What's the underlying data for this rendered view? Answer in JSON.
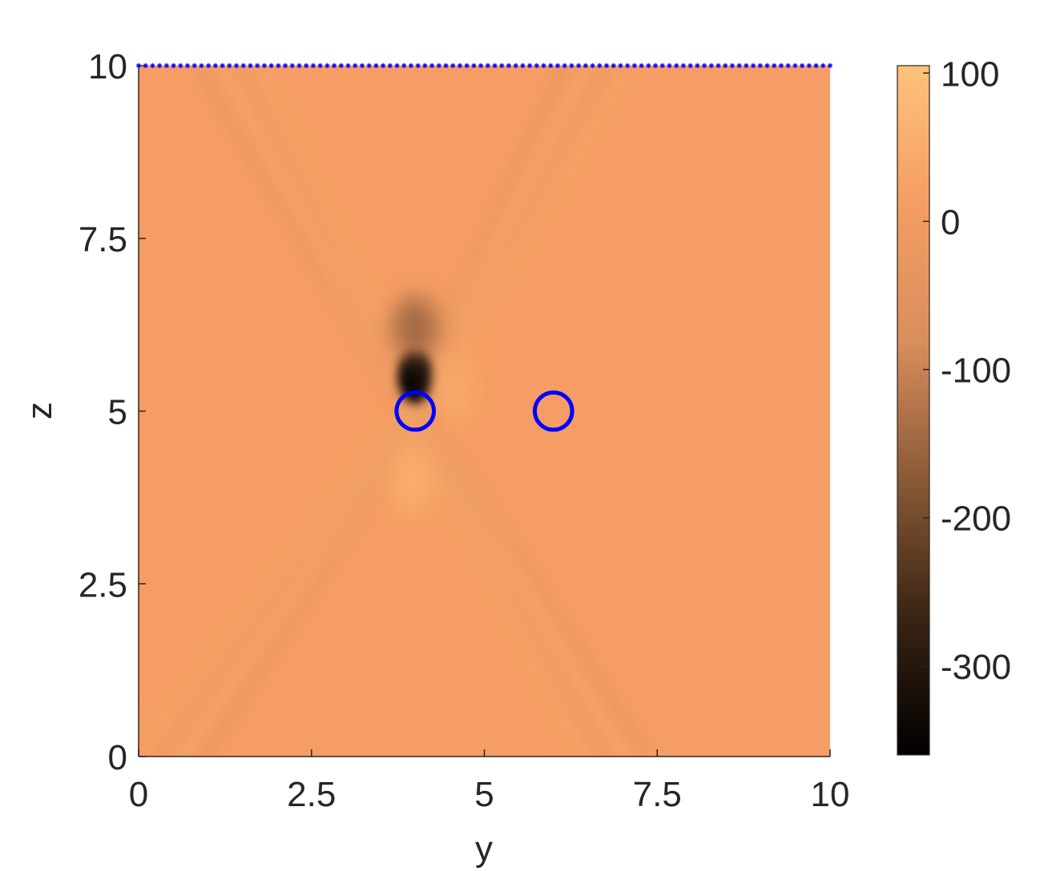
{
  "chart_data": {
    "type": "heatmap",
    "title": "",
    "xlabel": "y",
    "ylabel": "z",
    "xlim": [
      0,
      10
    ],
    "ylim": [
      0,
      10
    ],
    "x_ticks": [
      0,
      2.5,
      5,
      7.5,
      10
    ],
    "y_ticks": [
      0,
      2.5,
      5,
      7.5,
      10
    ],
    "x_tick_labels": [
      "0",
      "2.5",
      "5",
      "7.5",
      "10"
    ],
    "y_tick_labels": [
      "0",
      "2.5",
      "5",
      "7.5",
      "10"
    ],
    "colorbar": {
      "range": [
        -360,
        105
      ],
      "ticks": [
        100,
        0,
        -100,
        -200,
        -300
      ],
      "tick_labels": [
        "100",
        "0",
        "-100",
        "-200",
        "-300"
      ],
      "colormap": "copper",
      "colors": [
        "#000000",
        "#3a2414",
        "#8a5a36",
        "#d98e5c",
        "#f59d64",
        "#ffc27a"
      ]
    },
    "field_background_value": 12,
    "features": [
      {
        "kind": "dark-minimum",
        "y": 4.0,
        "z": 5.5,
        "value": -360
      },
      {
        "kind": "dark-lobe",
        "y": 4.0,
        "z": 6.2,
        "value": -150
      },
      {
        "kind": "bright-maximum",
        "y": 3.95,
        "z": 4.0,
        "value": 60
      },
      {
        "kind": "bright-maximum",
        "y": 4.6,
        "z": 5.3,
        "value": 45
      }
    ],
    "wave_bands": [
      {
        "from": [
          4.0,
          5.0
        ],
        "to": [
          1.2,
          10.0
        ]
      },
      {
        "from": [
          4.0,
          5.0
        ],
        "to": [
          6.5,
          10.0
        ]
      },
      {
        "from": [
          4.0,
          5.0
        ],
        "to": [
          0.6,
          0.0
        ]
      },
      {
        "from": [
          4.0,
          5.0
        ],
        "to": [
          7.0,
          0.0
        ]
      }
    ],
    "series": [
      {
        "type": "circle-markers",
        "color": "#0000ff",
        "points": [
          [
            4.0,
            5.0
          ],
          [
            6.0,
            5.0
          ]
        ],
        "radius": 0.27
      },
      {
        "type": "star-markers",
        "color": "#0000ff",
        "z": 10,
        "y_from": 0,
        "y_to": 10,
        "count": 100
      }
    ]
  }
}
